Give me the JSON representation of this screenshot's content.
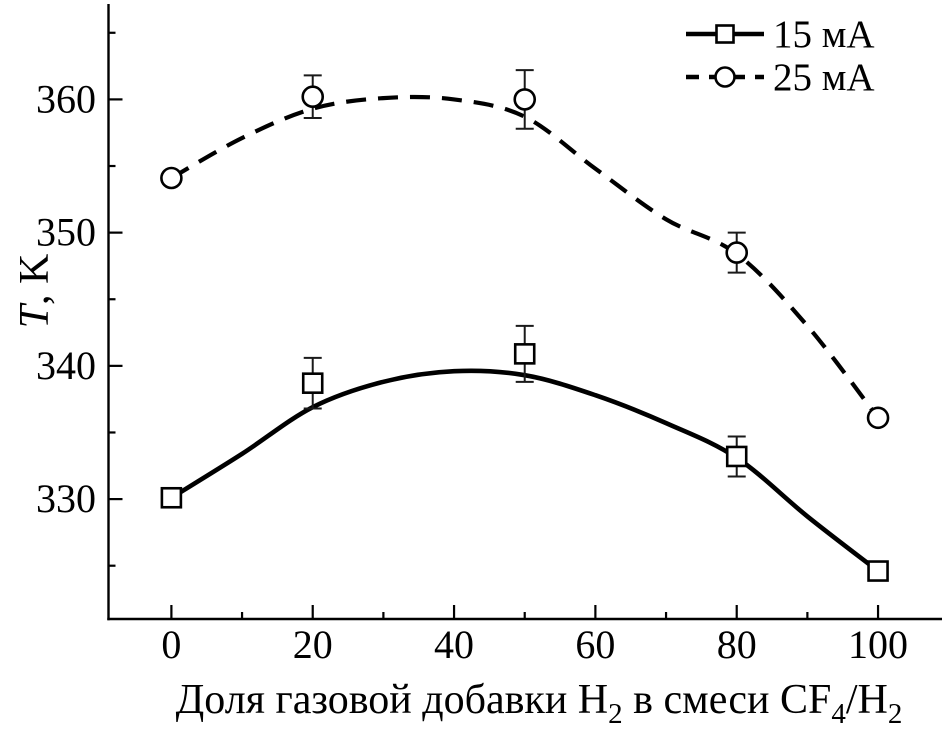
{
  "figure": {
    "background": "#ffffff",
    "line_color": "#000000",
    "text_color": "#000000",
    "error_bar_color": "#1a1a1a"
  },
  "chart_data": {
    "type": "line",
    "title": "",
    "xlabel_parts": [
      {
        "t": "Доля газовой добавки H"
      },
      {
        "t": "2",
        "sub": true
      },
      {
        "t": " в смеси CF"
      },
      {
        "t": "4",
        "sub": true
      },
      {
        "t": "/H"
      },
      {
        "t": "2",
        "sub": true
      }
    ],
    "ylabel_parts": [
      {
        "t": "T",
        "italic": true
      },
      {
        "t": ", K"
      }
    ],
    "xlim": [
      -8.9,
      109.05
    ],
    "ylim": [
      321,
      367.16
    ],
    "x_ticks_major": [
      0,
      20,
      40,
      60,
      80,
      100
    ],
    "x_tick_labels": [
      "0",
      "20",
      "40",
      "60",
      "80",
      "100"
    ],
    "x_ticks_minor": [
      10,
      30,
      50,
      70,
      90
    ],
    "y_ticks_major": [
      330,
      340,
      350,
      360
    ],
    "y_tick_labels": [
      "330",
      "340",
      "350",
      "360"
    ],
    "y_ticks_minor": [
      325,
      335,
      345,
      355,
      365
    ],
    "grid": false,
    "legend_position": "top-right",
    "series": [
      {
        "name": "15 мА",
        "marker": "square",
        "line": "solid",
        "color": "#000000",
        "x": [
          0,
          20,
          50,
          80,
          100
        ],
        "y": [
          330.1,
          338.7,
          340.9,
          333.2,
          324.6
        ],
        "yerr": [
          null,
          1.9,
          2.1,
          1.5,
          null
        ],
        "fit": [
          [
            0,
            330.1
          ],
          [
            10,
            333.4
          ],
          [
            20,
            336.9
          ],
          [
            30,
            338.8
          ],
          [
            40,
            339.6
          ],
          [
            50,
            339.3
          ],
          [
            60,
            337.8
          ],
          [
            70,
            335.7
          ],
          [
            80,
            333.1
          ],
          [
            90,
            328.7
          ],
          [
            100,
            324.6
          ]
        ]
      },
      {
        "name": "25 мА",
        "marker": "circle",
        "line": "dashed",
        "color": "#000000",
        "x": [
          0,
          20,
          50,
          80,
          100
        ],
        "y": [
          354.1,
          360.2,
          360.0,
          348.5,
          336.1
        ],
        "yerr": [
          null,
          1.6,
          2.2,
          1.5,
          null
        ],
        "fit": [
          [
            0,
            354.1
          ],
          [
            10,
            357.1
          ],
          [
            20,
            359.3
          ],
          [
            30,
            360.1
          ],
          [
            40,
            360.0
          ],
          [
            50,
            358.7
          ],
          [
            60,
            354.8
          ],
          [
            70,
            351.0
          ],
          [
            80,
            348.4
          ],
          [
            90,
            343.0
          ],
          [
            100,
            336.1
          ]
        ]
      }
    ]
  }
}
